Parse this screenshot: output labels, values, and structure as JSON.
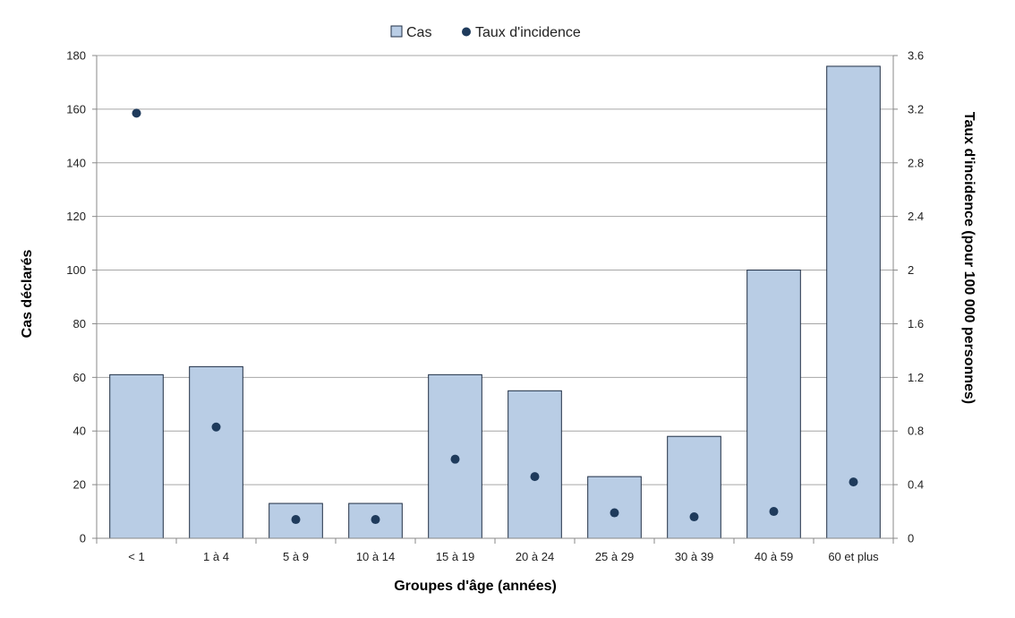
{
  "chart_data": {
    "type": "bar",
    "categories": [
      "< 1",
      "1 à 4",
      "5 à 9",
      "10 à 14",
      "15 à 19",
      "20 à 24",
      "25 à 29",
      "30 à 39",
      "40 à 59",
      "60 et plus"
    ],
    "series": [
      {
        "name": "Cas",
        "type": "bar",
        "axis": "left",
        "values": [
          61,
          64,
          13,
          13,
          61,
          55,
          23,
          38,
          100,
          176
        ]
      },
      {
        "name": "Taux d'incidence",
        "type": "scatter",
        "axis": "right",
        "values": [
          3.17,
          0.83,
          0.14,
          0.14,
          0.59,
          0.46,
          0.19,
          0.16,
          0.2,
          0.42
        ]
      }
    ],
    "xlabel": "Groupes d'âge (années)",
    "ylabel": "Cas déclarés",
    "y2label": "Taux d'incidence (pour 100 000 personnes)",
    "ylim": [
      0,
      180
    ],
    "y2lim": [
      0,
      3.6
    ],
    "yticks": [
      "0",
      "20",
      "40",
      "60",
      "80",
      "100",
      "120",
      "140",
      "160",
      "180"
    ],
    "y2ticks": [
      "0",
      "0.4",
      "0.8",
      "1.2",
      "1.6",
      "2",
      "2.4",
      "2.8",
      "3.2",
      "3.6"
    ],
    "grid": true,
    "legend_position": "top-center",
    "colors": {
      "bar_fill": "#b9cde5",
      "bar_stroke": "#1f2e45",
      "marker": "#1f3b5c",
      "grid": "#a6a6a6",
      "axis": "#888888"
    }
  }
}
